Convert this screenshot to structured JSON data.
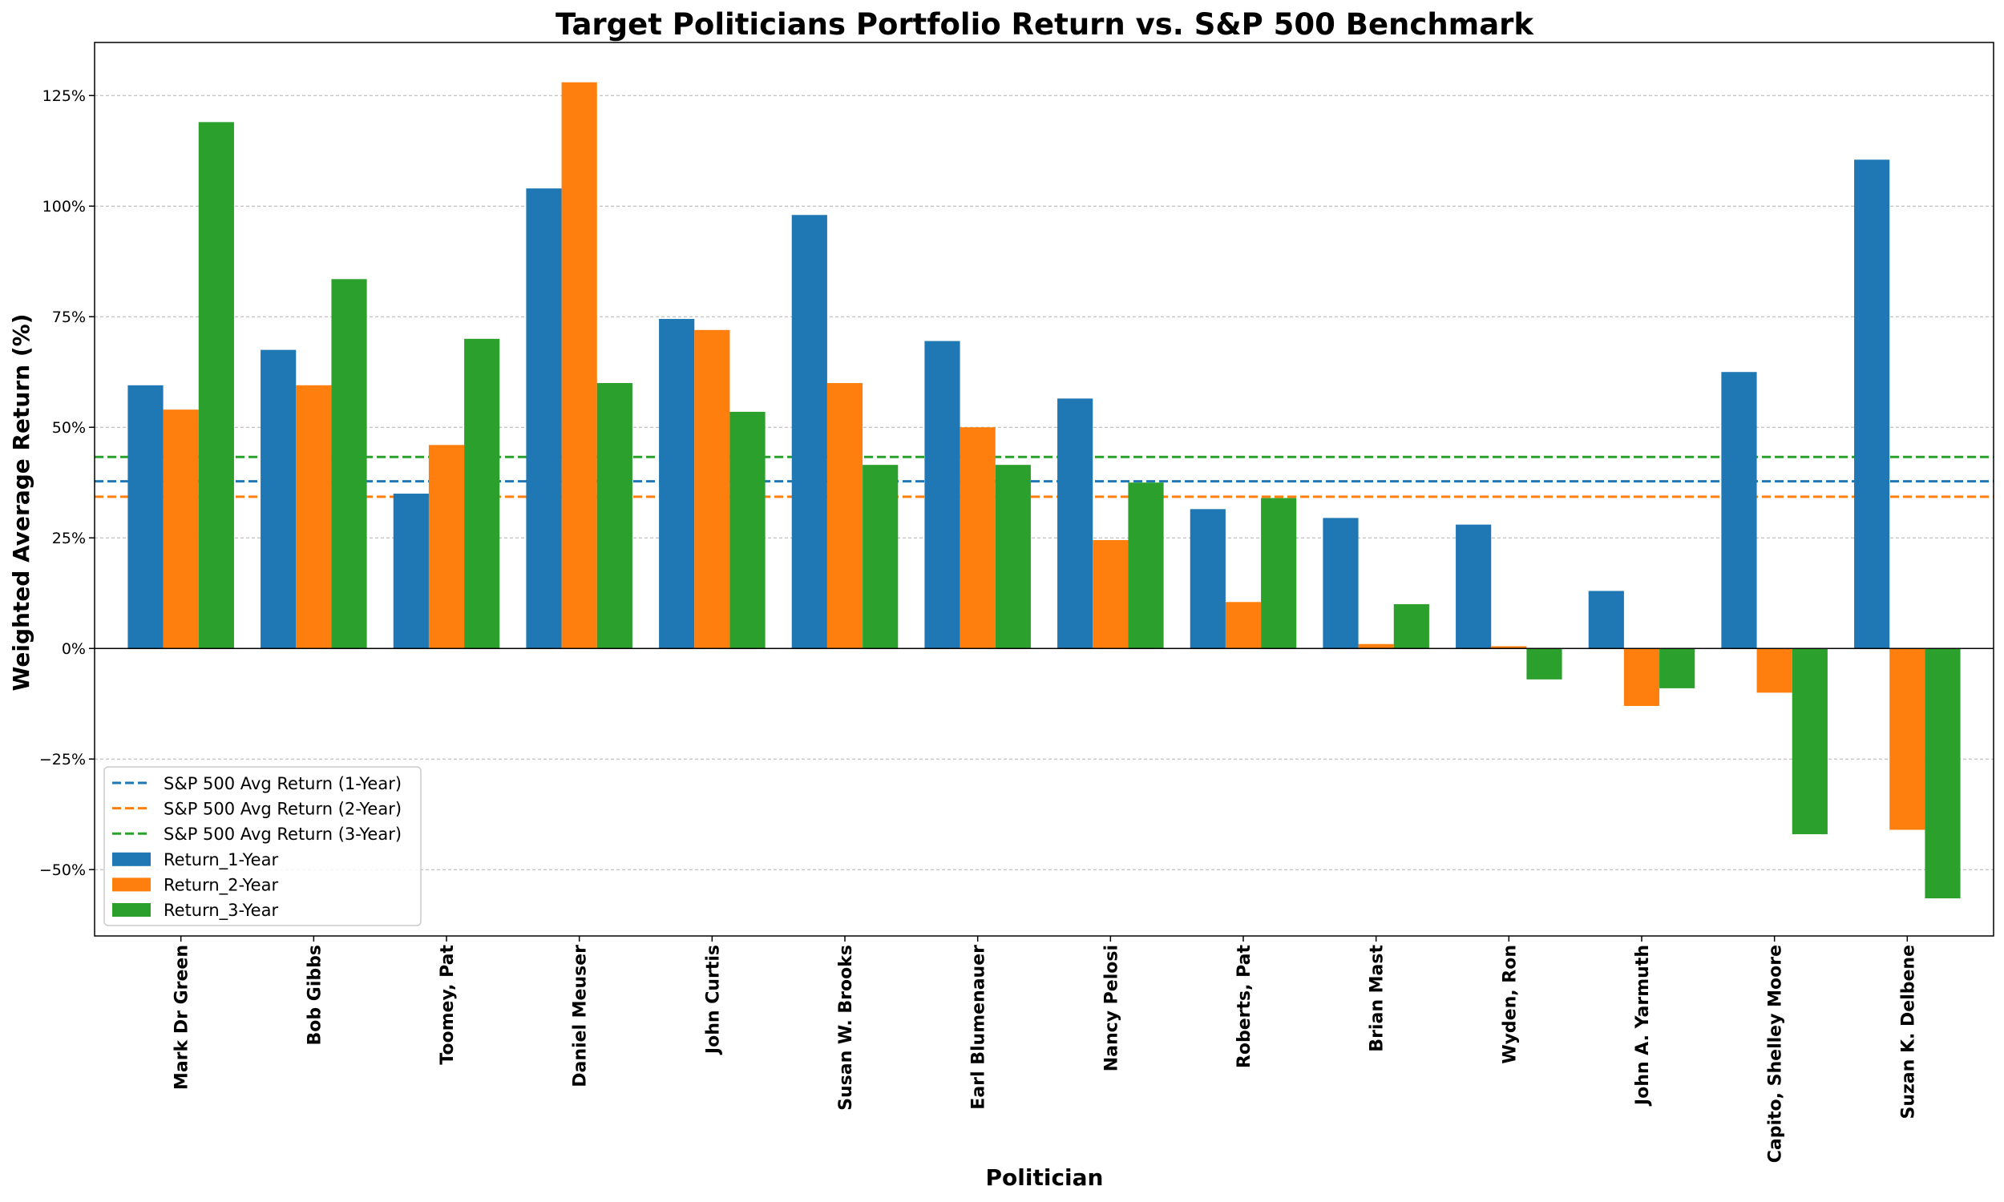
{
  "chart_data": {
    "type": "bar",
    "title": "Target Politicians Portfolio Return vs. S&P 500 Benchmark",
    "xlabel": "Politician",
    "ylabel": "Weighted Average Return (%)",
    "ylim": [
      -65,
      137
    ],
    "yticks": [
      -50,
      -25,
      0,
      25,
      50,
      75,
      100,
      125
    ],
    "ytick_labels": [
      "−50%",
      "−25%",
      "0%",
      "25%",
      "50%",
      "75%",
      "100%",
      "125%"
    ],
    "grid": "horizontal dashed",
    "legend_position": "lower-left",
    "categories": [
      "Mark Dr Green",
      "Bob Gibbs",
      "Toomey, Pat",
      "Daniel Meuser",
      "John Curtis",
      "Susan W. Brooks",
      "Earl Blumenauer",
      "Nancy Pelosi",
      "Roberts, Pat",
      "Brian Mast",
      "Wyden, Ron",
      "John A. Yarmuth",
      "Capito, Shelley Moore",
      "Suzan K. Delbene"
    ],
    "series": [
      {
        "name": "Return_1-Year",
        "color": "#1f77b4",
        "values": [
          59.5,
          67.5,
          35.0,
          104.0,
          74.5,
          98.0,
          69.5,
          56.5,
          31.5,
          29.5,
          28.0,
          13.0,
          62.5,
          110.5
        ]
      },
      {
        "name": "Return_2-Year",
        "color": "#ff7f0e",
        "values": [
          54.0,
          59.5,
          46.0,
          128.0,
          72.0,
          60.0,
          50.0,
          24.5,
          10.5,
          1.0,
          0.5,
          -13.0,
          -10.0,
          -41.0
        ]
      },
      {
        "name": "Return_3-Year",
        "color": "#2ca02c",
        "values": [
          119.0,
          83.5,
          70.0,
          60.0,
          53.5,
          41.5,
          41.5,
          37.5,
          34.0,
          10.0,
          -7.0,
          -9.0,
          -42.0,
          -56.5
        ]
      }
    ],
    "benchmarks": [
      {
        "name": "S&P 500 Avg Return (1-Year)",
        "color": "#1f77b4",
        "value": 37.8
      },
      {
        "name": "S&P 500 Avg Return (2-Year)",
        "color": "#ff7f0e",
        "value": 34.3
      },
      {
        "name": "S&P 500 Avg Return (3-Year)",
        "color": "#2ca02c",
        "value": 43.3
      }
    ]
  }
}
